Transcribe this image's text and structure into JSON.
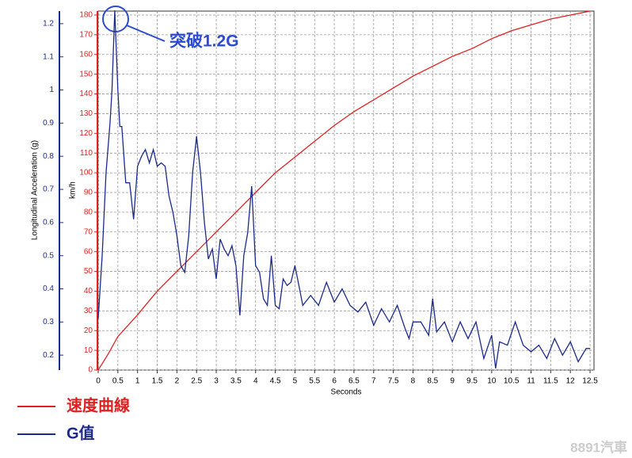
{
  "chart_data": {
    "type": "line",
    "x_label": "Seconds",
    "y_label": "km/h",
    "y2_label": "Longitudinal Acceleration (g)",
    "annotation": "突破1.2G",
    "watermark": "8891汽車",
    "xlim": [
      0,
      12.6
    ],
    "xticks": [
      0,
      0.5,
      1,
      1.5,
      2,
      2.5,
      3,
      3.5,
      4,
      4.5,
      5,
      5.5,
      6,
      6.5,
      7,
      7.5,
      8,
      8.5,
      9,
      9.5,
      10,
      10.5,
      11,
      11.5,
      12,
      12.5
    ],
    "ylim": [
      0,
      182
    ],
    "yticks": [
      0,
      10,
      20,
      30,
      40,
      50,
      60,
      70,
      80,
      90,
      100,
      110,
      120,
      130,
      140,
      150,
      160,
      170,
      180
    ],
    "y2lim": [
      0.155,
      1.238
    ],
    "y2ticks": [
      0.2,
      0.3,
      0.4,
      0.5,
      0.6,
      0.7,
      0.8,
      0.9,
      1,
      1.1,
      1.2
    ],
    "grid": true,
    "series": [
      {
        "name": "速度曲線",
        "color": "#e02020",
        "axis": "y",
        "x": [
          0,
          0.25,
          0.5,
          1,
          1.5,
          2,
          2.5,
          3,
          3.5,
          4,
          4.5,
          5,
          5.5,
          6,
          6.5,
          7,
          7.5,
          8,
          8.5,
          9,
          9.5,
          10,
          10.5,
          11,
          11.5,
          12,
          12.5
        ],
        "values": [
          0,
          8,
          17,
          28,
          40,
          50,
          60,
          70,
          80,
          90,
          100,
          108,
          116,
          124,
          131,
          137,
          143,
          149,
          154,
          159,
          163,
          168,
          172,
          175,
          178,
          180,
          182
        ]
      },
      {
        "name": "G值",
        "color": "#1c2a8c",
        "axis": "y2",
        "x": [
          0,
          0.1,
          0.2,
          0.3,
          0.35,
          0.42,
          0.5,
          0.55,
          0.6,
          0.7,
          0.8,
          0.9,
          1.0,
          1.1,
          1.2,
          1.3,
          1.4,
          1.5,
          1.6,
          1.7,
          1.8,
          1.9,
          2.0,
          2.1,
          2.2,
          2.3,
          2.4,
          2.5,
          2.6,
          2.7,
          2.8,
          2.9,
          3.0,
          3.1,
          3.2,
          3.3,
          3.4,
          3.5,
          3.6,
          3.7,
          3.8,
          3.9,
          4.0,
          4.1,
          4.2,
          4.3,
          4.4,
          4.5,
          4.6,
          4.7,
          4.8,
          4.9,
          5.0,
          5.1,
          5.2,
          5.4,
          5.6,
          5.8,
          6.0,
          6.2,
          6.4,
          6.6,
          6.8,
          7.0,
          7.2,
          7.4,
          7.6,
          7.8,
          7.9,
          8.0,
          8.2,
          8.4,
          8.5,
          8.6,
          8.8,
          9.0,
          9.2,
          9.4,
          9.6,
          9.8,
          10.0,
          10.1,
          10.2,
          10.4,
          10.6,
          10.8,
          11.0,
          11.2,
          11.4,
          11.6,
          11.8,
          12.0,
          12.2,
          12.4,
          12.5
        ],
        "values": [
          0.31,
          0.5,
          0.75,
          0.9,
          1.0,
          1.24,
          1.0,
          0.89,
          0.89,
          0.72,
          0.72,
          0.61,
          0.77,
          0.8,
          0.82,
          0.78,
          0.82,
          0.77,
          0.78,
          0.77,
          0.68,
          0.63,
          0.56,
          0.47,
          0.45,
          0.56,
          0.75,
          0.86,
          0.75,
          0.6,
          0.49,
          0.52,
          0.43,
          0.55,
          0.52,
          0.5,
          0.53,
          0.47,
          0.32,
          0.5,
          0.57,
          0.71,
          0.47,
          0.45,
          0.37,
          0.35,
          0.5,
          0.35,
          0.34,
          0.43,
          0.41,
          0.42,
          0.47,
          0.41,
          0.35,
          0.38,
          0.35,
          0.42,
          0.36,
          0.4,
          0.35,
          0.33,
          0.36,
          0.29,
          0.34,
          0.3,
          0.35,
          0.28,
          0.25,
          0.3,
          0.3,
          0.26,
          0.37,
          0.27,
          0.3,
          0.24,
          0.3,
          0.25,
          0.3,
          0.19,
          0.26,
          0.16,
          0.24,
          0.23,
          0.3,
          0.23,
          0.21,
          0.23,
          0.19,
          0.25,
          0.2,
          0.24,
          0.18,
          0.22,
          0.22
        ]
      }
    ]
  }
}
